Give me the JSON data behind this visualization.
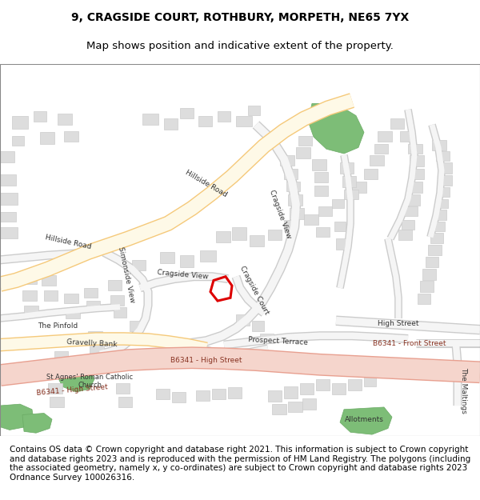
{
  "title_line1": "9, CRAGSIDE COURT, ROTHBURY, MORPETH, NE65 7YX",
  "title_line2": "Map shows position and indicative extent of the property.",
  "footer_text": "Contains OS data © Crown copyright and database right 2021. This information is subject to Crown copyright and database rights 2023 and is reproduced with the permission of HM Land Registry. The polygons (including the associated geometry, namely x, y co-ordinates) are subject to Crown copyright and database rights 2023 Ordnance Survey 100026316.",
  "bg_color": "#f8f8f8",
  "map_bg": "#ffffff",
  "road_major_color": "#f5c97a",
  "road_major_fill": "#fef9e7",
  "road_bsix_color": "#e8a090",
  "road_bsix_fill": "#f5d5cc",
  "road_minor_color": "#cccccc",
  "road_minor_fill": "#ffffff",
  "building_color": "#cccccc",
  "building_fill": "#dddddd",
  "green_color": "#6aaa64",
  "green_fill": "#7dbd77",
  "highlight_color": "#dd0000",
  "title_fontsize": 10,
  "footer_fontsize": 7.5,
  "label_fontsize": 6.5
}
